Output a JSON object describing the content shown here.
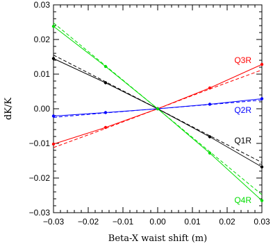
{
  "chart_data": {
    "type": "line",
    "xlabel": "Beta-X waist shift (m)",
    "ylabel": "dK/K",
    "xlim": [
      -0.03,
      0.03
    ],
    "ylim": [
      -0.03,
      0.03
    ],
    "x_ticks": [
      "−0.03",
      "−0.02",
      "−0.01",
      "0.00",
      "0.01",
      "0.02",
      "0.03"
    ],
    "y_ticks": [
      "−0.03",
      "−0.02",
      "−0.01",
      "0.00",
      "0.01",
      "0.02",
      "0.03"
    ],
    "x_tick_values": [
      -0.03,
      -0.02,
      -0.01,
      0.0,
      0.01,
      0.02,
      0.03
    ],
    "y_tick_values": [
      -0.03,
      -0.02,
      -0.01,
      0.0,
      0.01,
      0.02,
      0.03
    ],
    "grid": false,
    "series": [
      {
        "name": "Q3R",
        "color": "#ff0000",
        "x": [
          -0.03,
          -0.015,
          0.0,
          0.015,
          0.03
        ],
        "solid": [
          -0.0102,
          -0.0054,
          0.0,
          0.006,
          0.0128
        ],
        "dashed": [
          -0.0112,
          -0.0057,
          0.0,
          0.0057,
          0.0112
        ]
      },
      {
        "name": "Q2R",
        "color": "#0000ff",
        "x": [
          -0.03,
          -0.015,
          0.0,
          0.015,
          0.03
        ],
        "solid": [
          -0.0021,
          -0.0011,
          0.0,
          0.0013,
          0.0029
        ],
        "dashed": [
          -0.0025,
          -0.0012,
          0.0,
          0.0012,
          0.0025
        ]
      },
      {
        "name": "Q1R",
        "color": "#000000",
        "x": [
          -0.03,
          -0.015,
          0.0,
          0.015,
          0.03
        ],
        "solid": [
          0.0145,
          0.0075,
          0.0,
          -0.0081,
          -0.0168
        ],
        "dashed": [
          0.0155,
          0.0078,
          0.0,
          -0.0078,
          -0.0155
        ]
      },
      {
        "name": "Q4R",
        "color": "#00dd00",
        "x": [
          -0.03,
          -0.015,
          0.0,
          0.015,
          0.03
        ],
        "solid": [
          0.0238,
          0.0122,
          0.0,
          -0.0128,
          -0.0265
        ],
        "dashed": [
          0.0248,
          0.0124,
          0.0,
          -0.0124,
          -0.0248
        ]
      }
    ]
  }
}
